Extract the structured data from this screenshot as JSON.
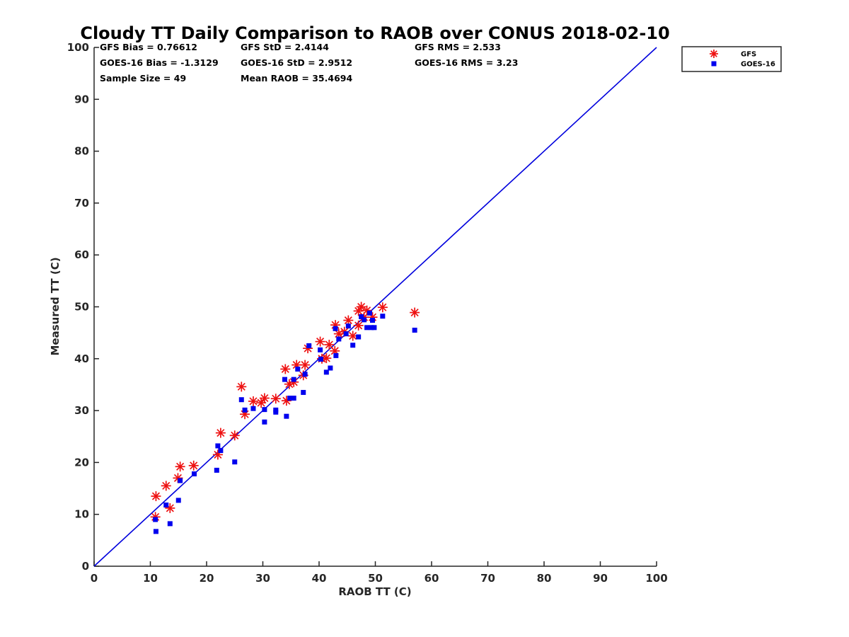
{
  "chart_data": {
    "type": "scatter",
    "title": "Cloudy TT Daily Comparison to RAOB over CONUS 2018-02-10",
    "xlabel": "RAOB TT (C)",
    "ylabel": "Measured TT (C)",
    "xlim": [
      0,
      100
    ],
    "ylim": [
      0,
      100
    ],
    "xticks": [
      "0",
      "10",
      "20",
      "30",
      "40",
      "50",
      "60",
      "70",
      "80",
      "90",
      "100"
    ],
    "yticks": [
      "0",
      "10",
      "20",
      "30",
      "40",
      "50",
      "60",
      "70",
      "80",
      "90",
      "100"
    ],
    "grid": false,
    "legend_position": "top-right (outside)",
    "stats": [
      [
        "GFS Bias = 0.76612",
        "GFS StD = 2.4144",
        "GFS RMS = 2.533"
      ],
      [
        "GOES-16 Bias = -1.3129",
        "GOES-16 StD = 2.9512",
        "GOES-16 RMS = 3.23"
      ],
      [
        "Sample Size = 49",
        "Mean RAOB = 35.4694",
        ""
      ]
    ],
    "reference_line": {
      "x": [
        0,
        100
      ],
      "y": [
        0,
        100
      ],
      "color": "#0000dd"
    },
    "series": [
      {
        "name": "GFS",
        "marker": "asterisk",
        "color": "#ee1111",
        "points": [
          [
            10.9,
            9.5
          ],
          [
            11.0,
            13.5
          ],
          [
            12.8,
            15.5
          ],
          [
            13.5,
            11.2
          ],
          [
            14.9,
            17.0
          ],
          [
            15.3,
            19.2
          ],
          [
            17.7,
            19.4
          ],
          [
            22.0,
            21.5
          ],
          [
            22.5,
            25.7
          ],
          [
            25.0,
            25.2
          ],
          [
            26.2,
            34.6
          ],
          [
            26.8,
            29.3
          ],
          [
            28.3,
            31.8
          ],
          [
            29.7,
            31.5
          ],
          [
            30.3,
            32.4
          ],
          [
            32.3,
            32.3
          ],
          [
            34.0,
            38.0
          ],
          [
            34.2,
            31.9
          ],
          [
            34.7,
            35.1
          ],
          [
            35.5,
            35.5
          ],
          [
            36.0,
            38.8
          ],
          [
            37.2,
            36.8
          ],
          [
            37.5,
            38.8
          ],
          [
            38.0,
            42.0
          ],
          [
            40.2,
            43.3
          ],
          [
            40.5,
            40.0
          ],
          [
            41.3,
            40.1
          ],
          [
            41.8,
            42.7
          ],
          [
            42.8,
            41.5
          ],
          [
            42.9,
            46.5
          ],
          [
            43.5,
            44.8
          ],
          [
            44.5,
            45.2
          ],
          [
            45.2,
            47.4
          ],
          [
            46.0,
            44.4
          ],
          [
            47.0,
            46.4
          ],
          [
            47.0,
            49.2
          ],
          [
            47.5,
            50.0
          ],
          [
            48.0,
            48.0
          ],
          [
            48.5,
            49.3
          ],
          [
            49.5,
            48.0
          ],
          [
            51.3,
            49.9
          ],
          [
            57.0,
            48.9
          ]
        ]
      },
      {
        "name": "GOES-16",
        "marker": "square",
        "color": "#0000ee",
        "points": [
          [
            10.9,
            9.0
          ],
          [
            11.0,
            6.7
          ],
          [
            12.8,
            11.8
          ],
          [
            13.5,
            8.2
          ],
          [
            15.0,
            12.7
          ],
          [
            15.3,
            16.5
          ],
          [
            17.8,
            17.8
          ],
          [
            21.8,
            18.5
          ],
          [
            22.0,
            23.2
          ],
          [
            22.5,
            22.3
          ],
          [
            25.0,
            20.1
          ],
          [
            26.2,
            32.1
          ],
          [
            26.8,
            30.1
          ],
          [
            28.3,
            30.4
          ],
          [
            30.3,
            30.2
          ],
          [
            30.3,
            27.8
          ],
          [
            32.3,
            30.1
          ],
          [
            32.3,
            29.7
          ],
          [
            33.9,
            36.0
          ],
          [
            34.2,
            28.9
          ],
          [
            34.8,
            32.4
          ],
          [
            35.5,
            32.4
          ],
          [
            35.5,
            36.0
          ],
          [
            36.2,
            38.0
          ],
          [
            37.2,
            33.5
          ],
          [
            37.5,
            37.0
          ],
          [
            38.2,
            42.5
          ],
          [
            40.2,
            41.7
          ],
          [
            40.3,
            39.9
          ],
          [
            41.3,
            37.4
          ],
          [
            42.0,
            38.2
          ],
          [
            42.9,
            45.8
          ],
          [
            43.0,
            40.6
          ],
          [
            43.5,
            43.8
          ],
          [
            44.8,
            44.8
          ],
          [
            45.2,
            46.3
          ],
          [
            46.0,
            42.6
          ],
          [
            47.0,
            44.2
          ],
          [
            47.5,
            48.1
          ],
          [
            48.0,
            47.5
          ],
          [
            48.5,
            46.0
          ],
          [
            49.0,
            48.8
          ],
          [
            49.3,
            46.0
          ],
          [
            49.5,
            47.4
          ],
          [
            49.8,
            46.0
          ],
          [
            51.3,
            48.2
          ],
          [
            57.0,
            45.5
          ]
        ]
      }
    ]
  }
}
